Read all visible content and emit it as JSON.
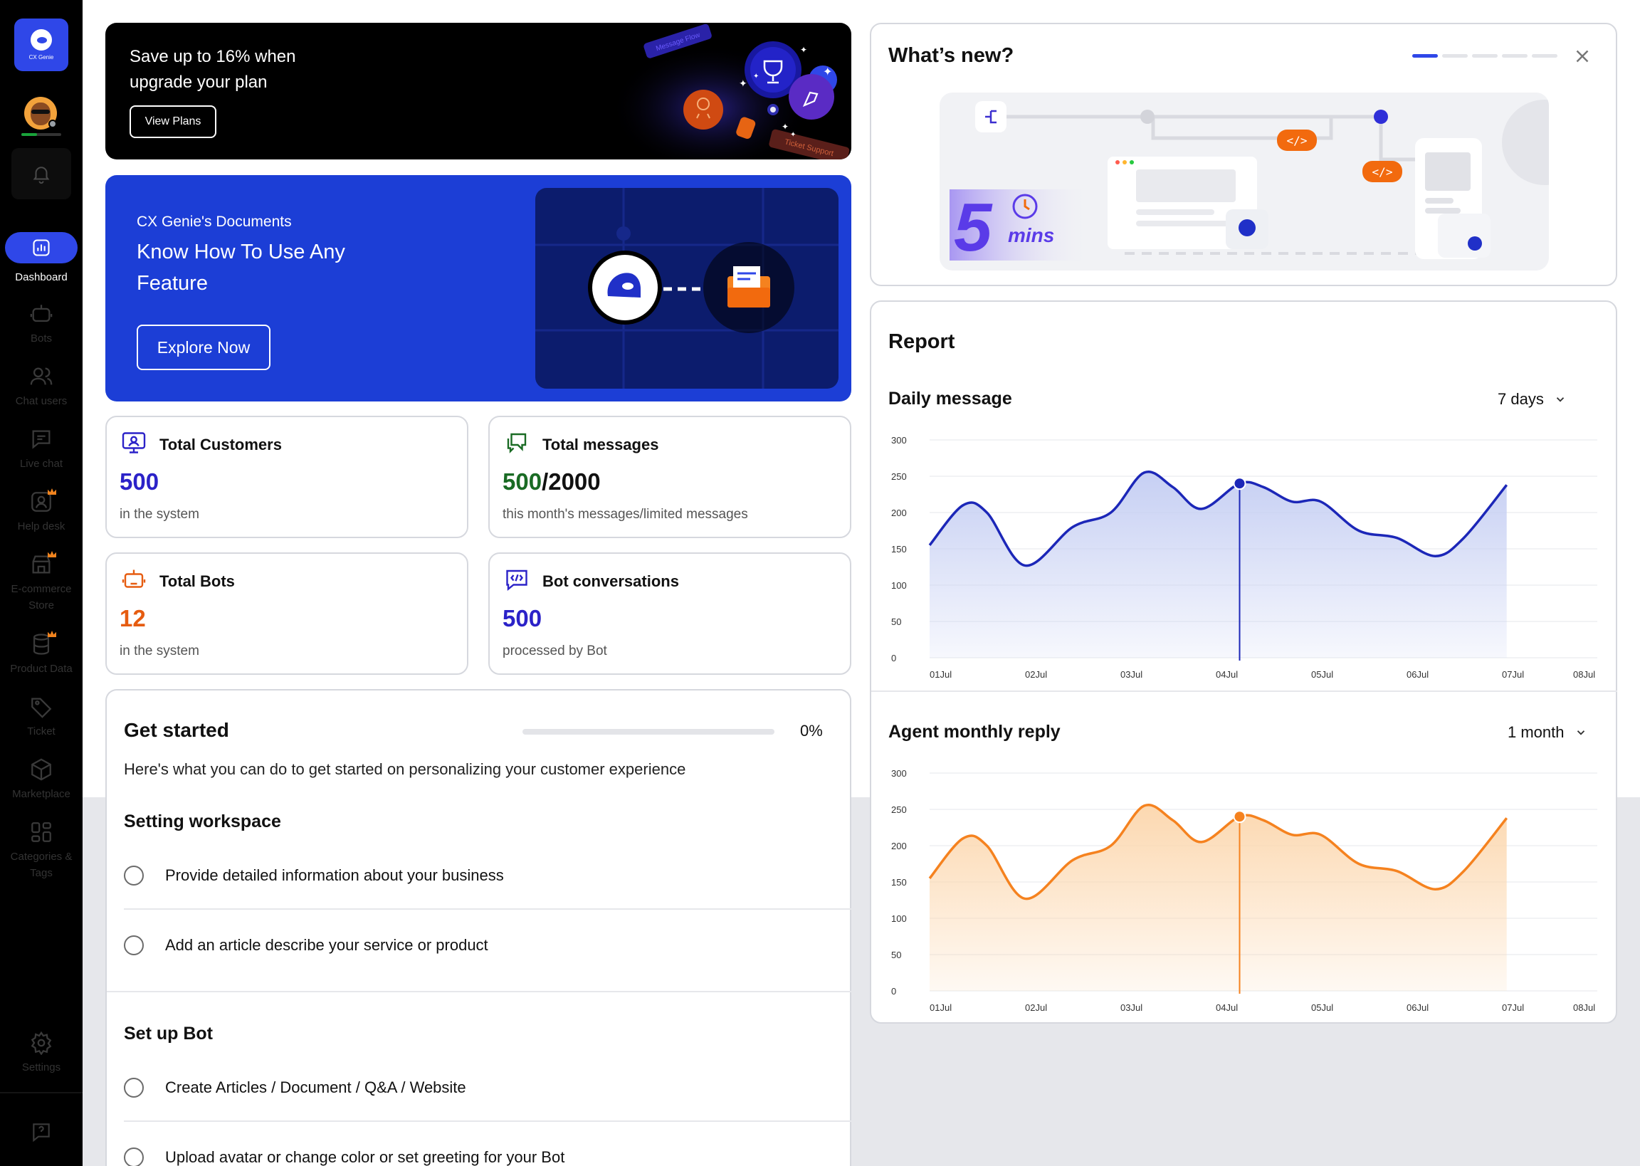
{
  "sidebar": {
    "logo_text": "CX Genie",
    "items": [
      {
        "label": "Dashboard",
        "icon": "dashboard-icon",
        "active": true
      },
      {
        "label": "Bots",
        "icon": "bot-icon"
      },
      {
        "label": "Chat users",
        "icon": "users-icon"
      },
      {
        "label": "Live chat",
        "icon": "chat-icon"
      },
      {
        "label": "Help desk",
        "icon": "help-desk-icon",
        "premium": true
      },
      {
        "label": "E-commerce Store",
        "icon": "store-icon",
        "premium": true
      },
      {
        "label": "Product Data",
        "icon": "database-icon",
        "premium": true
      },
      {
        "label": "Ticket",
        "icon": "ticket-icon"
      },
      {
        "label": "Marketplace",
        "icon": "cube-icon"
      },
      {
        "label": "Categories & Tags",
        "icon": "categories-icon"
      },
      {
        "label": "Settings",
        "icon": "gear-icon"
      }
    ]
  },
  "promo": {
    "title": "Save up to 16% when upgrade your plan",
    "button": "View Plans",
    "tag_message_flow": "Message Flow",
    "tag_ticket_support": "Ticket Support"
  },
  "docs": {
    "subtitle": "CX Genie's Documents",
    "headline": "Know How To Use Any Feature",
    "button": "Explore Now"
  },
  "stats": [
    {
      "title": "Total Customers",
      "value": "500",
      "desc": "in the system",
      "color": "#2b22c8"
    },
    {
      "title": "Total messages",
      "value_a": "500",
      "value_b": "/2000",
      "desc": "this month's messages/limited messages",
      "color": "#1a6b24"
    },
    {
      "title": "Total Bots",
      "value": "12",
      "desc": "in the system",
      "color": "#e65c10"
    },
    {
      "title": "Bot conversations",
      "value": "500",
      "desc": "processed by Bot",
      "color": "#2b22c8"
    }
  ],
  "get_started": {
    "title": "Get started",
    "progress": 0,
    "progress_label": "0%",
    "subtitle": "Here's what you can do to get started on personalizing your customer experience",
    "sections": [
      {
        "title": "Setting workspace",
        "items": [
          "Provide detailed information about your business",
          "Add an article describe your service or product"
        ]
      },
      {
        "title": "Set up Bot",
        "items": [
          "Create Articles / Document / Q&A / Website",
          "Upload avatar or change color or set greeting for your Bot"
        ]
      }
    ]
  },
  "whats_new": {
    "title": "What’s new?",
    "slides": 5,
    "active_slide": 0,
    "badge_number": "5",
    "badge_text": "mins"
  },
  "report": {
    "title": "Report",
    "daily": {
      "title": "Daily message",
      "range": "7 days"
    },
    "monthly": {
      "title": "Agent monthly reply",
      "range": "1 month"
    }
  },
  "chart_data": [
    {
      "type": "area",
      "title": "Daily message",
      "x": [
        "01Jul",
        "02Jul",
        "03Jul",
        "04Jul",
        "05Jul",
        "06Jul",
        "07Jul",
        "08Jul"
      ],
      "yticks": [
        0,
        50,
        100,
        150,
        200,
        250,
        300
      ],
      "ylim": [
        0,
        300
      ],
      "points": [
        [
          0,
          155
        ],
        [
          0.35,
          210
        ],
        [
          0.6,
          200
        ],
        [
          1.0,
          127
        ],
        [
          1.5,
          180
        ],
        [
          1.9,
          200
        ],
        [
          2.25,
          255
        ],
        [
          2.55,
          235
        ],
        [
          2.85,
          205
        ],
        [
          3.25,
          240
        ],
        [
          3.5,
          235
        ],
        [
          3.8,
          215
        ],
        [
          4.1,
          215
        ],
        [
          4.5,
          175
        ],
        [
          4.9,
          165
        ],
        [
          5.3,
          140
        ],
        [
          5.6,
          165
        ],
        [
          6.05,
          238
        ]
      ],
      "highlight": {
        "x": 3.25,
        "y": 240
      },
      "color": "#1c27b8",
      "fill": "#c6cff3"
    },
    {
      "type": "area",
      "title": "Agent monthly reply",
      "x": [
        "01Jul",
        "02Jul",
        "03Jul",
        "04Jul",
        "05Jul",
        "06Jul",
        "07Jul",
        "08Jul"
      ],
      "yticks": [
        0,
        50,
        100,
        150,
        200,
        250,
        300
      ],
      "ylim": [
        0,
        300
      ],
      "points": [
        [
          0,
          155
        ],
        [
          0.35,
          210
        ],
        [
          0.6,
          200
        ],
        [
          1.0,
          127
        ],
        [
          1.5,
          180
        ],
        [
          1.9,
          200
        ],
        [
          2.25,
          255
        ],
        [
          2.55,
          235
        ],
        [
          2.85,
          205
        ],
        [
          3.25,
          240
        ],
        [
          3.5,
          235
        ],
        [
          3.8,
          215
        ],
        [
          4.1,
          215
        ],
        [
          4.5,
          175
        ],
        [
          4.9,
          165
        ],
        [
          5.3,
          140
        ],
        [
          5.6,
          165
        ],
        [
          6.05,
          238
        ]
      ],
      "highlight": {
        "x": 3.25,
        "y": 240
      },
      "color": "#f5821f",
      "fill": "#fcd8b0"
    }
  ]
}
